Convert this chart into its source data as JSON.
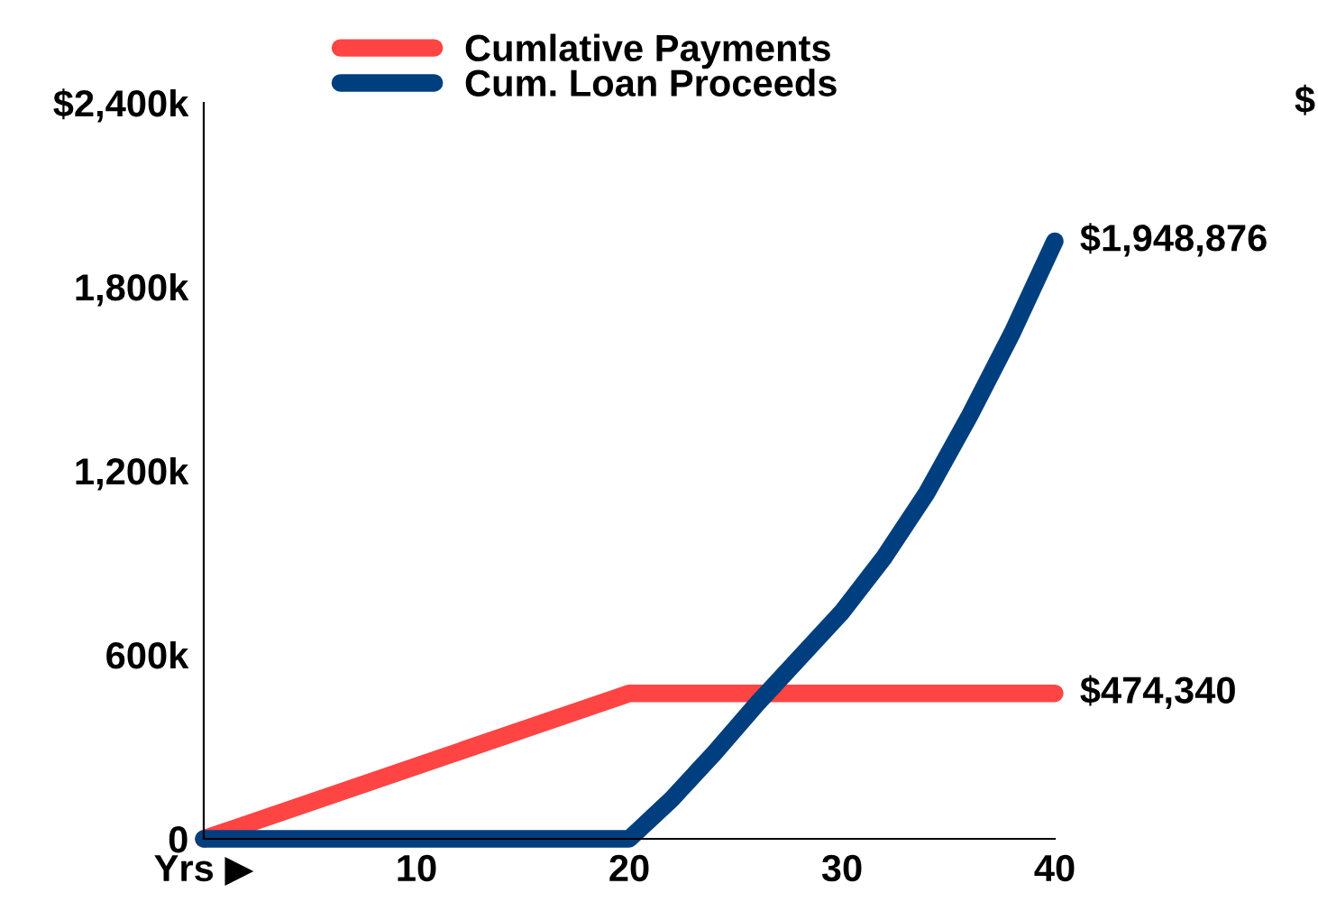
{
  "chart_data": {
    "type": "line",
    "x": [
      0,
      20,
      22,
      24,
      26,
      28,
      30,
      32,
      34,
      36,
      38,
      40
    ],
    "xlim": [
      0,
      40
    ],
    "xticks": [
      {
        "value": 0,
        "label": "Yrs ▶"
      },
      10,
      20,
      30,
      40
    ],
    "ylim": [
      0,
      2400000
    ],
    "yticks": [
      {
        "value": 0,
        "label": "0"
      },
      {
        "value": 600000,
        "label": "600k"
      },
      {
        "value": 1200000,
        "label": "1,200k"
      },
      {
        "value": 1800000,
        "label": "1,800k"
      },
      {
        "value": 2400000,
        "label": "$2,400k"
      }
    ],
    "series": [
      {
        "name": "Cumlative Payments",
        "color": "#ff4444",
        "x": [
          0,
          20,
          40
        ],
        "values": [
          0,
          474340,
          474340
        ],
        "value_labels": [
          null,
          null,
          "$474,340"
        ]
      },
      {
        "name": "Cum. Loan Proceeds",
        "color": "#003f7f",
        "values": [
          0,
          0,
          130000,
          280000,
          440000,
          590000,
          740000,
          920000,
          1130000,
          1380000,
          1650000,
          1948876
        ],
        "value_labels": [
          null,
          null,
          null,
          null,
          null,
          null,
          null,
          null,
          null,
          null,
          null,
          "$1,948,876"
        ]
      }
    ],
    "legend": "top",
    "grid": false,
    "marker": "none",
    "line_style": "solid",
    "annotations": [
      "$"
    ]
  }
}
